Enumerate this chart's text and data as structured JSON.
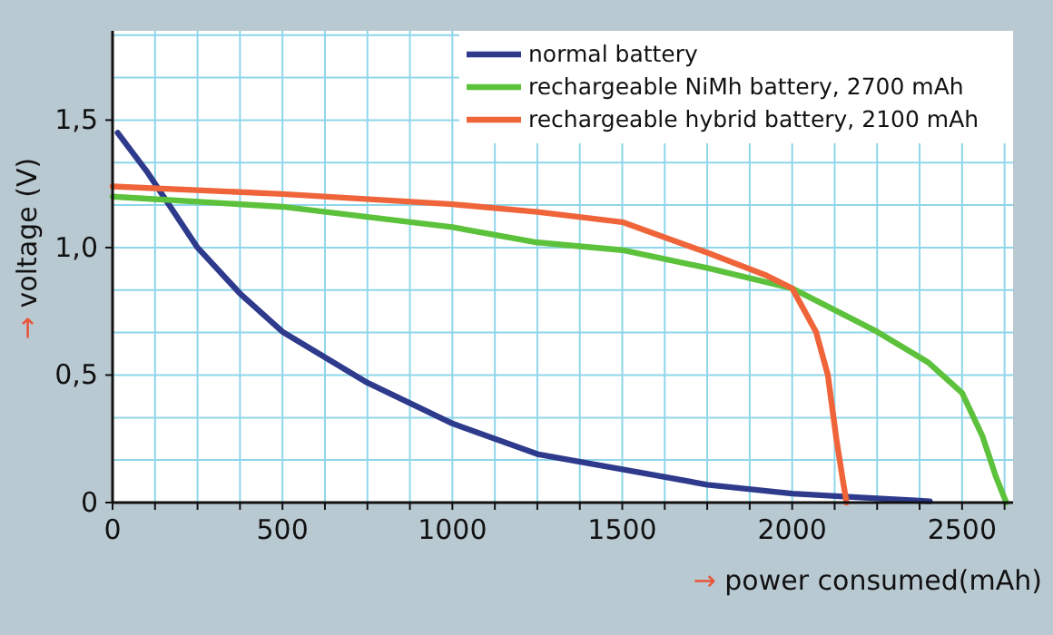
{
  "chart_data": {
    "type": "line",
    "xlabel": "→ power consumed(mAh)",
    "ylabel": "→ voltage (V)",
    "xlim": [
      0,
      2650
    ],
    "ylim": [
      0,
      1.85
    ],
    "xticks": [
      0,
      {
        "value": 125,
        "label": null
      },
      {
        "value": 250,
        "label": null
      },
      {
        "value": 375,
        "label": null
      },
      500,
      {
        "value": 625,
        "label": null
      },
      {
        "value": 750,
        "label": null
      },
      {
        "value": 875,
        "label": null
      },
      1000,
      {
        "value": 1125,
        "label": null
      },
      {
        "value": 1250,
        "label": null
      },
      {
        "value": 1375,
        "label": null
      },
      1500,
      {
        "value": 1625,
        "label": null
      },
      {
        "value": 1750,
        "label": null
      },
      {
        "value": 1875,
        "label": null
      },
      2000,
      {
        "value": 2125,
        "label": null
      },
      {
        "value": 2250,
        "label": null
      },
      {
        "value": 2375,
        "label": null
      },
      2500,
      {
        "value": 2625,
        "label": null
      }
    ],
    "yticks": [
      {
        "value": 0,
        "label": "0"
      },
      {
        "value": 0.167,
        "label": null
      },
      {
        "value": 0.333,
        "label": null
      },
      {
        "value": 0.5,
        "label": "0,5"
      },
      {
        "value": 0.667,
        "label": null
      },
      {
        "value": 0.833,
        "label": null
      },
      {
        "value": 1,
        "label": "1,0"
      },
      {
        "value": 1.167,
        "label": null
      },
      {
        "value": 1.333,
        "label": null
      },
      {
        "value": 1.5,
        "label": "1,5"
      },
      {
        "value": 1.667,
        "label": null
      },
      {
        "value": 1.833,
        "label": null
      }
    ],
    "grid": true,
    "legend": "top right",
    "marker": "none",
    "line_style": "solid",
    "series": [
      {
        "name": "normal battery",
        "color": "#2e3a8c",
        "x": [
          15,
          100,
          250,
          375,
          500,
          750,
          1000,
          1250,
          1500,
          1750,
          2000,
          2200,
          2405
        ],
        "values": [
          1.45,
          1.3,
          1.0,
          0.82,
          0.67,
          0.47,
          0.31,
          0.19,
          0.13,
          0.07,
          0.035,
          0.02,
          0.005
        ]
      },
      {
        "name": "rechargeable NiMh battery, 2700 mAh",
        "color": "#5cc13b",
        "x": [
          0,
          500,
          750,
          1000,
          1250,
          1500,
          1750,
          2000,
          2250,
          2400,
          2500,
          2560,
          2600,
          2630
        ],
        "values": [
          1.2,
          1.16,
          1.12,
          1.08,
          1.02,
          0.99,
          0.92,
          0.84,
          0.67,
          0.55,
          0.43,
          0.26,
          0.1,
          0
        ]
      },
      {
        "name": "rechargeable hybrid battery, 2100 mAh",
        "color": "#f0643a",
        "x": [
          0,
          500,
          1000,
          1250,
          1500,
          1750,
          1925,
          2000,
          2070,
          2105,
          2130,
          2150,
          2160
        ],
        "values": [
          1.24,
          1.21,
          1.17,
          1.14,
          1.1,
          0.98,
          0.89,
          0.84,
          0.67,
          0.5,
          0.25,
          0.08,
          0
        ]
      }
    ]
  }
}
